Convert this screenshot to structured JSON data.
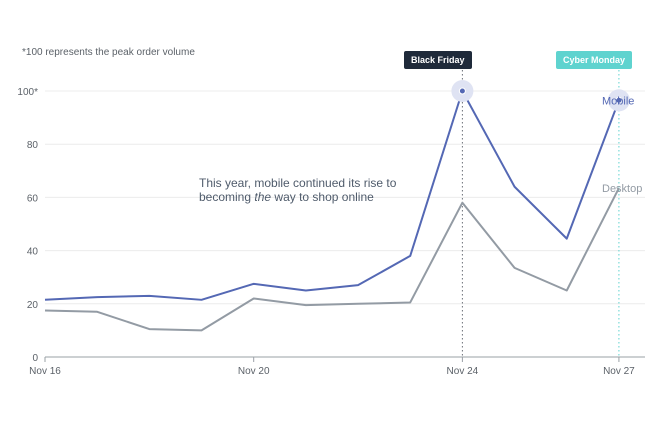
{
  "chart_data": {
    "type": "line",
    "note": "*100 represents the peak order volume",
    "annotation": {
      "before": "This year, mobile continued its rise to becoming ",
      "emphasis": "the",
      "after": " way to shop online"
    },
    "x": [
      0,
      1,
      2,
      3,
      4,
      5,
      6,
      7,
      8,
      9,
      10,
      11
    ],
    "x_domain": [
      0,
      11.5
    ],
    "ylim": [
      0,
      100
    ],
    "x_ticks": [
      {
        "x": 0,
        "label": "Nov 16"
      },
      {
        "x": 4,
        "label": "Nov 20"
      },
      {
        "x": 8,
        "label": "Nov 24"
      },
      {
        "x": 11,
        "label": "Nov 27"
      }
    ],
    "y_ticks": [
      {
        "value": 0,
        "label": "0"
      },
      {
        "value": 20,
        "label": "20"
      },
      {
        "value": 40,
        "label": "40"
      },
      {
        "value": 60,
        "label": "60"
      },
      {
        "value": 80,
        "label": "80"
      },
      {
        "value": 100,
        "label": "100*"
      }
    ],
    "series": [
      {
        "name": "Mobile",
        "color": "#5468b4",
        "values": [
          21.5,
          22.5,
          23,
          21.5,
          27.5,
          25,
          27,
          38,
          100,
          64,
          44.5,
          96.5
        ]
      },
      {
        "name": "Desktop",
        "color": "#939ba4",
        "values": [
          17.5,
          17,
          10.5,
          10,
          22,
          19.5,
          20,
          20.5,
          58,
          33.5,
          25,
          63.5
        ]
      }
    ],
    "events": [
      {
        "label": "Black Friday",
        "x": 8,
        "color": "#1f2a3a",
        "line_color": "#6b7077"
      },
      {
        "label": "Cyber Monday",
        "x": 11,
        "color": "#5fd3cf",
        "line_color": "#5fd3cf"
      }
    ]
  }
}
